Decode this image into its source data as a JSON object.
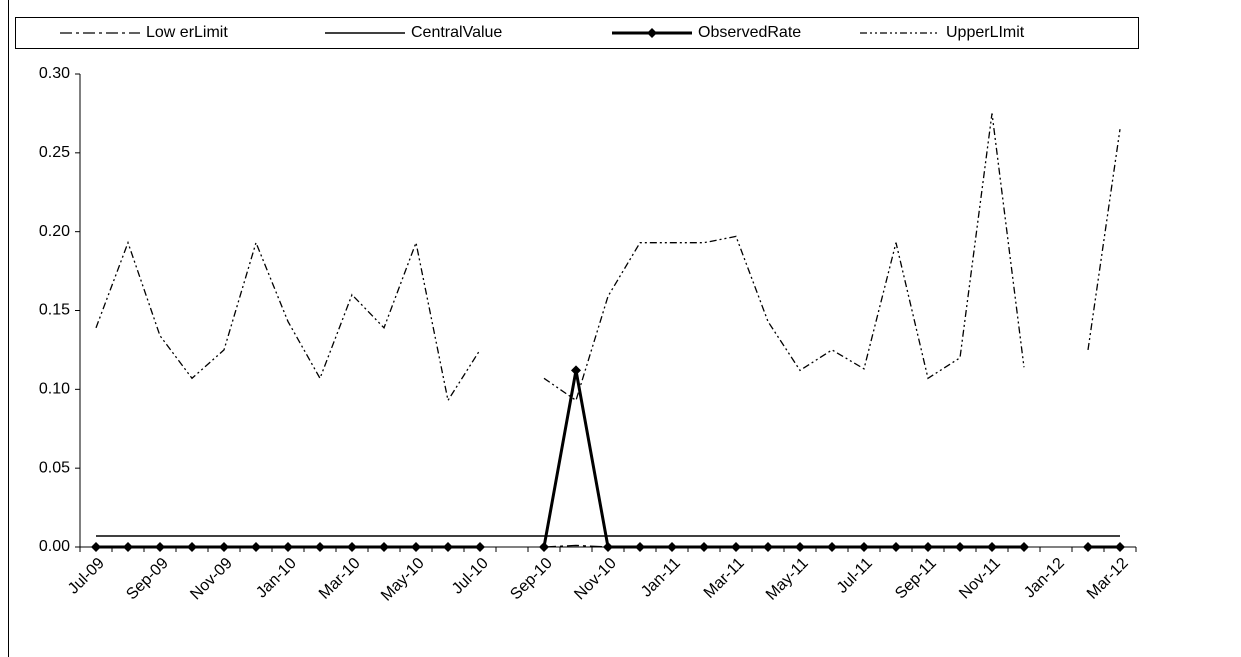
{
  "chart_data": {
    "type": "line",
    "categories": [
      "Jul-09",
      null,
      "Sep-09",
      null,
      "Nov-09",
      null,
      "Jan-10",
      null,
      "Mar-10",
      null,
      "May-10",
      null,
      "Jul-10",
      null,
      "Sep-10",
      null,
      "Nov-10",
      null,
      "Jan-11",
      null,
      "Mar-11",
      null,
      "May-11",
      null,
      "Jul-11",
      null,
      "Sep-11",
      null,
      "Nov-11",
      null,
      "Jan-12",
      null,
      "Mar-12"
    ],
    "series": [
      {
        "name": "Low erLimit",
        "color": "#000000",
        "line_style": "dash-dot",
        "values": [
          0,
          0,
          0,
          0,
          0,
          0,
          0,
          0,
          0,
          0,
          0,
          0,
          0,
          null,
          0,
          0.001,
          0,
          0,
          0,
          0,
          0,
          0,
          0,
          0,
          0,
          0,
          0,
          0,
          0,
          0,
          null,
          0,
          0
        ]
      },
      {
        "name": "CentralValue",
        "color": "#000000",
        "line_style": "solid",
        "values": [
          0.007,
          0.007,
          0.007,
          0.007,
          0.007,
          0.007,
          0.007,
          0.007,
          0.007,
          0.007,
          0.007,
          0.007,
          0.007,
          0.007,
          0.007,
          0.007,
          0.007,
          0.007,
          0.007,
          0.007,
          0.007,
          0.007,
          0.007,
          0.007,
          0.007,
          0.007,
          0.007,
          0.007,
          0.007,
          0.007,
          0.007,
          0.007,
          0.007
        ]
      },
      {
        "name": "ObservedRate",
        "color": "#000000",
        "line_style": "bold",
        "marker": "diamond",
        "values": [
          0,
          0,
          0,
          0,
          0,
          0,
          0,
          0,
          0,
          0,
          0,
          0,
          0,
          null,
          0,
          0.112,
          0,
          0,
          0,
          0,
          0,
          0,
          0,
          0,
          0,
          0,
          0,
          0,
          0,
          0,
          null,
          0,
          0
        ]
      },
      {
        "name": "UpperLImit",
        "color": "#000000",
        "line_style": "dash-dot-dot",
        "values": [
          0.139,
          0.193,
          0.134,
          0.107,
          0.125,
          0.193,
          0.143,
          0.107,
          0.16,
          0.139,
          0.193,
          0.093,
          0.125,
          null,
          0.107,
          0.093,
          0.159,
          0.193,
          0.193,
          0.193,
          0.197,
          0.143,
          0.112,
          0.125,
          0.113,
          0.193,
          0.107,
          0.12,
          0.275,
          0.114,
          null,
          0.125,
          0.265
        ]
      }
    ],
    "ylim": [
      0,
      0.3
    ],
    "yticks": [
      {
        "value": 0,
        "label": "0.00"
      },
      {
        "value": 0.05,
        "label": "0.05"
      },
      {
        "value": 0.1,
        "label": "0.10"
      },
      {
        "value": 0.15,
        "label": "0.15"
      },
      {
        "value": 0.2,
        "label": "0.20"
      },
      {
        "value": 0.25,
        "label": "0.25"
      },
      {
        "value": 0.3,
        "label": "0.30"
      }
    ],
    "legend": "top"
  }
}
